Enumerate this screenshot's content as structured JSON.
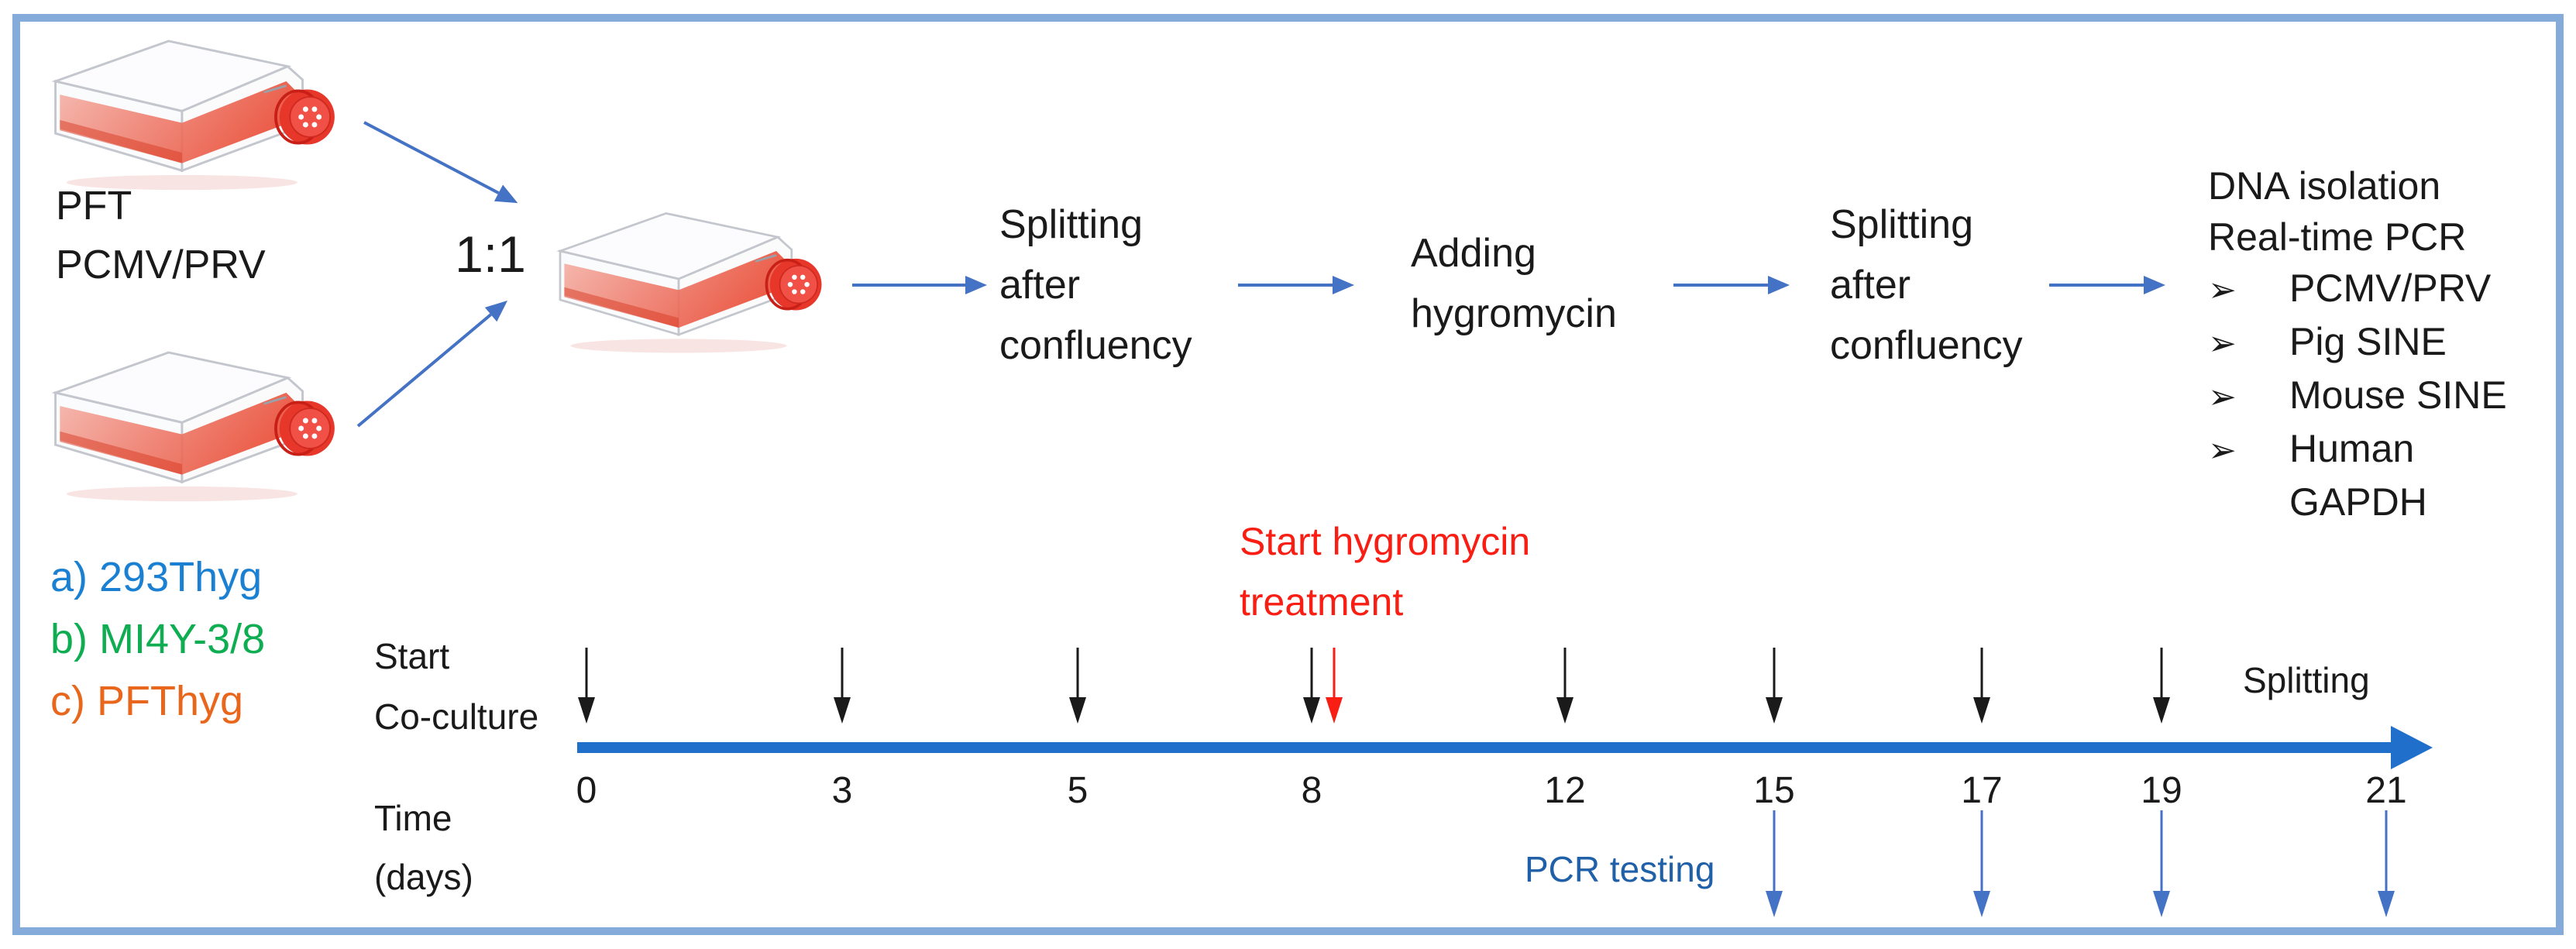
{
  "source_flasks": {
    "label_lines": [
      "PFT",
      "PCMV/PRV"
    ]
  },
  "mix_ratio": "1:1",
  "workflow": {
    "steps": [
      {
        "lines": [
          "Splitting",
          "after",
          "confluency"
        ]
      },
      {
        "lines": [
          "Adding",
          "hygromycin"
        ]
      },
      {
        "lines": [
          "Splitting",
          "after",
          "confluency"
        ]
      }
    ]
  },
  "analysis": {
    "header_lines": [
      "DNA isolation",
      "Real-time PCR"
    ],
    "bullet_glyph": "➢",
    "bullets": [
      "PCMV/PRV",
      "Pig SINE",
      "Mouse SINE",
      "Human"
    ],
    "bullet_continuation": "GAPDH"
  },
  "legend": {
    "items": [
      {
        "label": "a) 293Thyg",
        "color": "#1B80D2"
      },
      {
        "label": "b) MI4Y-3/8",
        "color": "#0EAD52"
      },
      {
        "label": "c) PFThyg",
        "color": "#E8671C"
      }
    ]
  },
  "timeline": {
    "start_label_lines": [
      "Start",
      "Co-culture"
    ],
    "time_label_lines": [
      "Time",
      "(days)"
    ],
    "hygromycin_label_lines": [
      "Start hygromycin",
      "treatment"
    ],
    "splitting_label": "Splitting",
    "pcr_label": "PCR testing",
    "days": [
      {
        "day": "0",
        "black_arrow": true,
        "red_arrow": false,
        "pcr_arrow": false
      },
      {
        "day": "3",
        "black_arrow": true,
        "red_arrow": false,
        "pcr_arrow": false
      },
      {
        "day": "5",
        "black_arrow": true,
        "red_arrow": false,
        "pcr_arrow": false
      },
      {
        "day": "8",
        "black_arrow": true,
        "red_arrow": true,
        "pcr_arrow": false
      },
      {
        "day": "12",
        "black_arrow": true,
        "red_arrow": false,
        "pcr_arrow": false
      },
      {
        "day": "15",
        "black_arrow": true,
        "red_arrow": false,
        "pcr_arrow": true
      },
      {
        "day": "17",
        "black_arrow": true,
        "red_arrow": false,
        "pcr_arrow": true
      },
      {
        "day": "19",
        "black_arrow": true,
        "red_arrow": false,
        "pcr_arrow": true
      },
      {
        "day": "21",
        "black_arrow": false,
        "red_arrow": false,
        "pcr_arrow": true
      }
    ]
  },
  "colors": {
    "connector_blue": "#4472C4",
    "timeline_blue": "#1F6FCB",
    "pcr_arrow_blue": "#4472C4",
    "pcr_text_blue": "#2060A8",
    "red": "#F81E14",
    "text_black": "#1A1A1A",
    "border_blue": "#85ABDA"
  }
}
